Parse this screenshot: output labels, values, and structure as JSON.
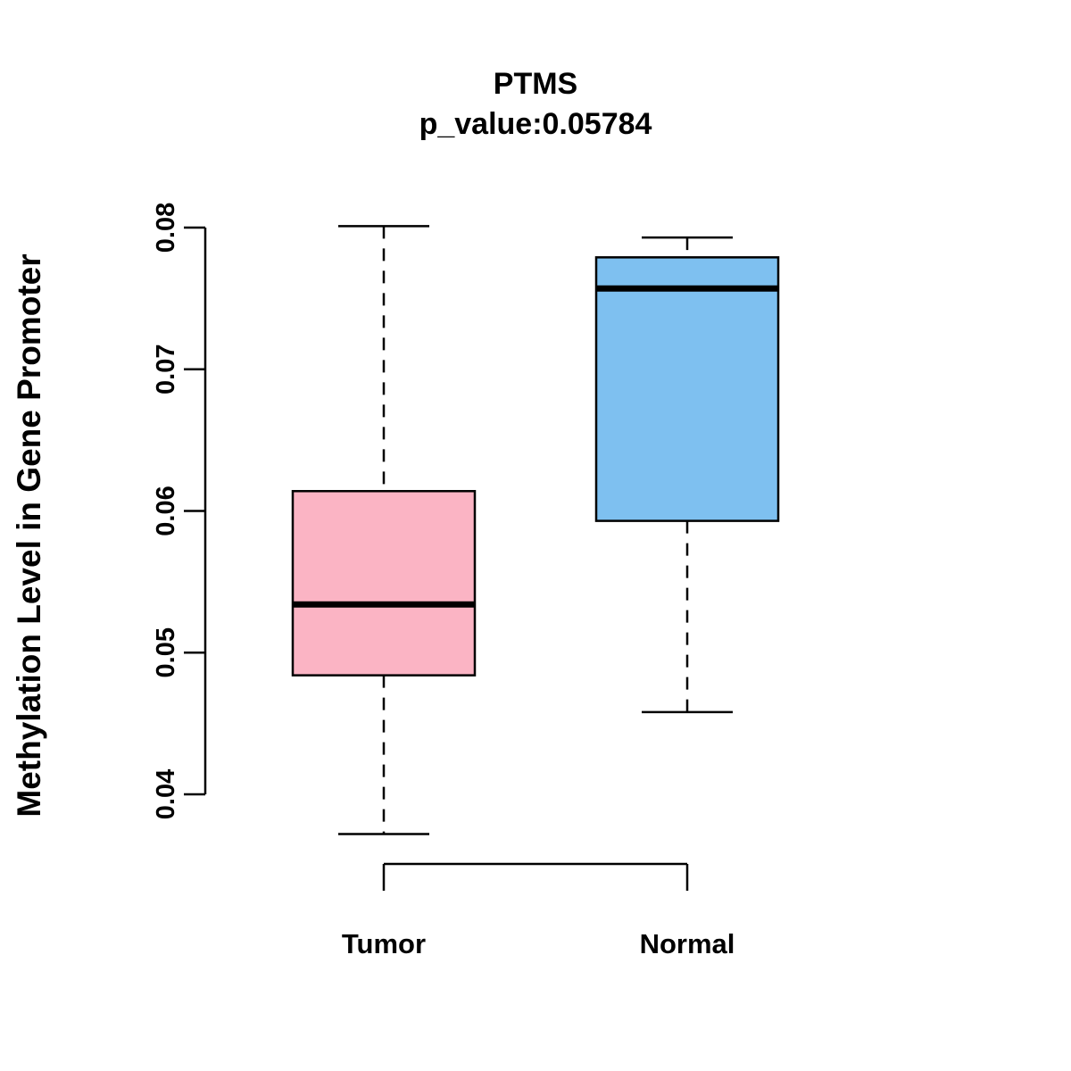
{
  "chart_data": {
    "type": "boxplot",
    "title": "PTMS",
    "subtitle": "p_value:0.05784",
    "ylabel": "Methylation Level in Gene Promoter",
    "xlabel": "",
    "categories": [
      "Tumor",
      "Normal"
    ],
    "yticks": [
      0.04,
      0.05,
      0.06,
      0.07,
      0.08
    ],
    "ylim": [
      0.036,
      0.081
    ],
    "grid": false,
    "legend": "none",
    "series": [
      {
        "name": "Tumor",
        "color": "#FBB4C4",
        "whisker_low": 0.0372,
        "q1": 0.0484,
        "median": 0.0534,
        "q3": 0.0614,
        "whisker_high": 0.0801
      },
      {
        "name": "Normal",
        "color": "#7EC0F0",
        "whisker_low": 0.0458,
        "q1": 0.0593,
        "median": 0.0757,
        "q3": 0.0779,
        "whisker_high": 0.0793
      }
    ]
  }
}
